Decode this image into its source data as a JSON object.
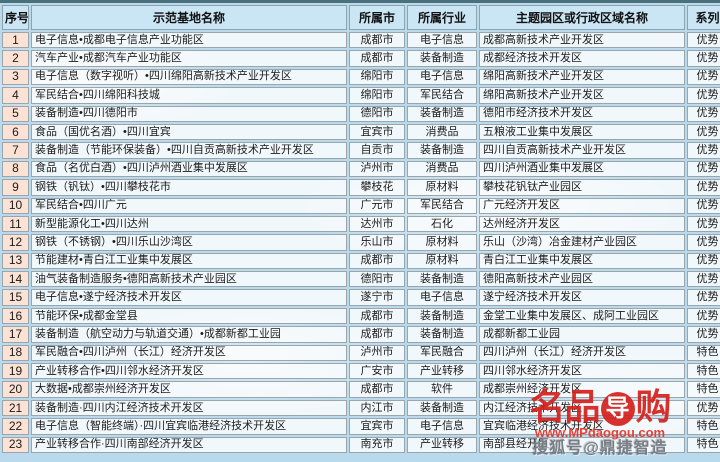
{
  "table": {
    "headers": {
      "no": "序号",
      "name": "示范基地名称",
      "city": "所属市",
      "industry": "所属行业",
      "zone": "主题园区或行政区域名称",
      "series": "系列"
    },
    "rows": [
      {
        "no": "1",
        "name": "电子信息•成都电子信息产业功能区",
        "city": "成都市",
        "industry": "电子信息",
        "zone": "成都高新技术产业开发区",
        "series": "优势"
      },
      {
        "no": "2",
        "name": "汽车产业•成都汽车产业功能区",
        "city": "成都市",
        "industry": "装备制造",
        "zone": "成都经济技术开发区",
        "series": "优势"
      },
      {
        "no": "3",
        "name": "电子信息（数字视听）•四川绵阳高新技术产业开发区",
        "city": "绵阳市",
        "industry": "电子信息",
        "zone": "绵阳高新技术产业开发区",
        "series": "优势"
      },
      {
        "no": "4",
        "name": "军民结合•四川绵阳科技城",
        "city": "绵阳市",
        "industry": "军民结合",
        "zone": "绵阳高新技术产业开发区",
        "series": "优势"
      },
      {
        "no": "5",
        "name": "装备制造•四川德阳市",
        "city": "德阳市",
        "industry": "装备制造",
        "zone": "德阳市经济技术开发区",
        "series": "优势"
      },
      {
        "no": "6",
        "name": "食品（国优名酒）•四川宜宾",
        "city": "宜宾市",
        "industry": "消费品",
        "zone": "五粮液工业集中发展区",
        "series": "优势"
      },
      {
        "no": "7",
        "name": "装备制造（节能环保装备）•四川自贡高新技术产业开发区",
        "city": "自贡市",
        "industry": "装备制造",
        "zone": "四川自贡高新技术产业开发区",
        "series": "优势"
      },
      {
        "no": "8",
        "name": "食品（名优白酒）•四川泸州酒业集中发展区",
        "city": "泸州市",
        "industry": "消费品",
        "zone": "四川泸州酒业集中发展区",
        "series": "优势"
      },
      {
        "no": "9",
        "name": "钢铁（钒钛）•四川攀枝花市",
        "city": "攀枝花",
        "industry": "原材料",
        "zone": "攀枝花钒钛产业园区",
        "series": "优势"
      },
      {
        "no": "10",
        "name": "军民结合•四川广元",
        "city": "广元市",
        "industry": "军民结合",
        "zone": "广元经济开发区",
        "series": "优势"
      },
      {
        "no": "11",
        "name": "新型能源化工•四川达州",
        "city": "达州市",
        "industry": "石化",
        "zone": "达州经济开发区",
        "series": "优势"
      },
      {
        "no": "12",
        "name": "钢铁（不锈钢）•四川乐山沙湾区",
        "city": "乐山市",
        "industry": "原材料",
        "zone": "乐山（沙湾）冶金建材产业园区",
        "series": "优势"
      },
      {
        "no": "13",
        "name": "节能建材•青白江工业集中发展区",
        "city": "成都市",
        "industry": "原材料",
        "zone": "青白江工业集中发展区",
        "series": "优势"
      },
      {
        "no": "14",
        "name": "油气装备制造服务•德阳高新技术产业园区",
        "city": "德阳市",
        "industry": "装备制造",
        "zone": "德阳高新技术产业园区",
        "series": "优势"
      },
      {
        "no": "15",
        "name": "电子信息•遂宁经济技术开发区",
        "city": "遂宁市",
        "industry": "电子信息",
        "zone": "遂宁经济技术开发区",
        "series": "优势"
      },
      {
        "no": "16",
        "name": "节能环保•成都金堂县",
        "city": "成都市",
        "industry": "装备制造",
        "zone": "金堂工业集中发展区、成阿工业园区",
        "series": "优势"
      },
      {
        "no": "17",
        "name": "装备制造（航空动力与轨道交通）•成都新都工业园",
        "city": "成都市",
        "industry": "装备制造",
        "zone": "成都新都工业园",
        "series": "优势"
      },
      {
        "no": "18",
        "name": "军民融合•四川泸州（长江）经济开发区",
        "city": "泸州市",
        "industry": "军民融合",
        "zone": "四川泸州（长江）经济开发区",
        "series": "特色"
      },
      {
        "no": "19",
        "name": "产业转移合作•四川邻水经济开发区",
        "city": "广安市",
        "industry": "产业转移",
        "zone": "四川邻水经济开发区",
        "series": "特色"
      },
      {
        "no": "20",
        "name": "大数据•成都崇州经济开发区",
        "city": "成都市",
        "industry": "软件",
        "zone": "成都崇州经济开发区",
        "series": "特色"
      },
      {
        "no": "21",
        "name": "装备制造·四川内江经济技术开发区",
        "city": "内江市",
        "industry": "装备制造",
        "zone": "内江经济技术开发区",
        "series": "优势"
      },
      {
        "no": "22",
        "name": "电子信息（智能终端）·四川宜宾临港经济技术开发区",
        "city": "宜宾市",
        "industry": "电子信息",
        "zone": "宜宾临港经济技术开发区",
        "series": "特色"
      },
      {
        "no": "23",
        "name": "产业转移合作·四川南部经济开发区",
        "city": "南充市",
        "industry": "产业转移",
        "zone": "南部县经开区",
        "series": "特色"
      }
    ]
  },
  "watermark": {
    "logo_left": "名品",
    "logo_circle": "导",
    "logo_right": "购",
    "url": "www.MPdaogou.com",
    "sohu": "搜狐号@鼎捷智造",
    "logo_color": "#d6211c",
    "sohu_color": "#777e86"
  }
}
